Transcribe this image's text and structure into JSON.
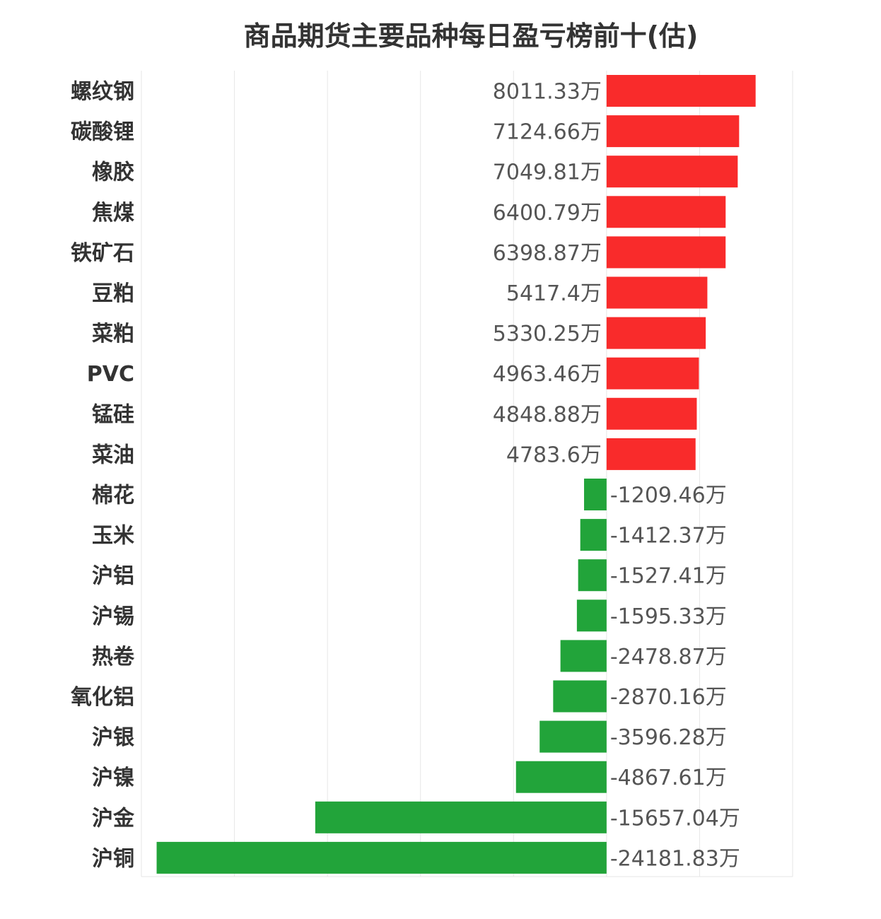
{
  "chart_data": {
    "type": "bar",
    "orientation": "horizontal",
    "title": "商品期货主要品种每日盈亏榜前十(估)",
    "unit": "万",
    "categories": [
      "螺纹钢",
      "碳酸锂",
      "橡胶",
      "焦煤",
      "铁矿石",
      "豆粕",
      "菜粕",
      "PVC",
      "锰硅",
      "菜油",
      "棉花",
      "玉米",
      "沪铝",
      "沪锡",
      "热卷",
      "氧化铝",
      "沪银",
      "沪镍",
      "沪金",
      "沪铜"
    ],
    "values": [
      8011.33,
      7124.66,
      7049.81,
      6400.79,
      6398.87,
      5417.4,
      5330.25,
      4963.46,
      4848.88,
      4783.6,
      -1209.46,
      -1412.37,
      -1527.41,
      -1595.33,
      -2478.87,
      -2870.16,
      -3596.28,
      -4867.61,
      -15657.04,
      -24181.83
    ],
    "value_labels": [
      "8011.33万",
      "7124.66万",
      "7049.81万",
      "6400.79万",
      "6398.87万",
      "5417.4万",
      "5330.25万",
      "4963.46万",
      "4848.88万",
      "4783.6万",
      "-1209.46万",
      "-1412.37万",
      "-1527.41万",
      "-1595.33万",
      "-2478.87万",
      "-2870.16万",
      "-3596.28万",
      "-4867.61万",
      "-15657.04万",
      "-24181.83万"
    ],
    "xlim": [
      -25000,
      10000
    ],
    "grid": true,
    "legend": "none",
    "positive_color": "#f92b2b",
    "negative_color": "#22a43a"
  }
}
